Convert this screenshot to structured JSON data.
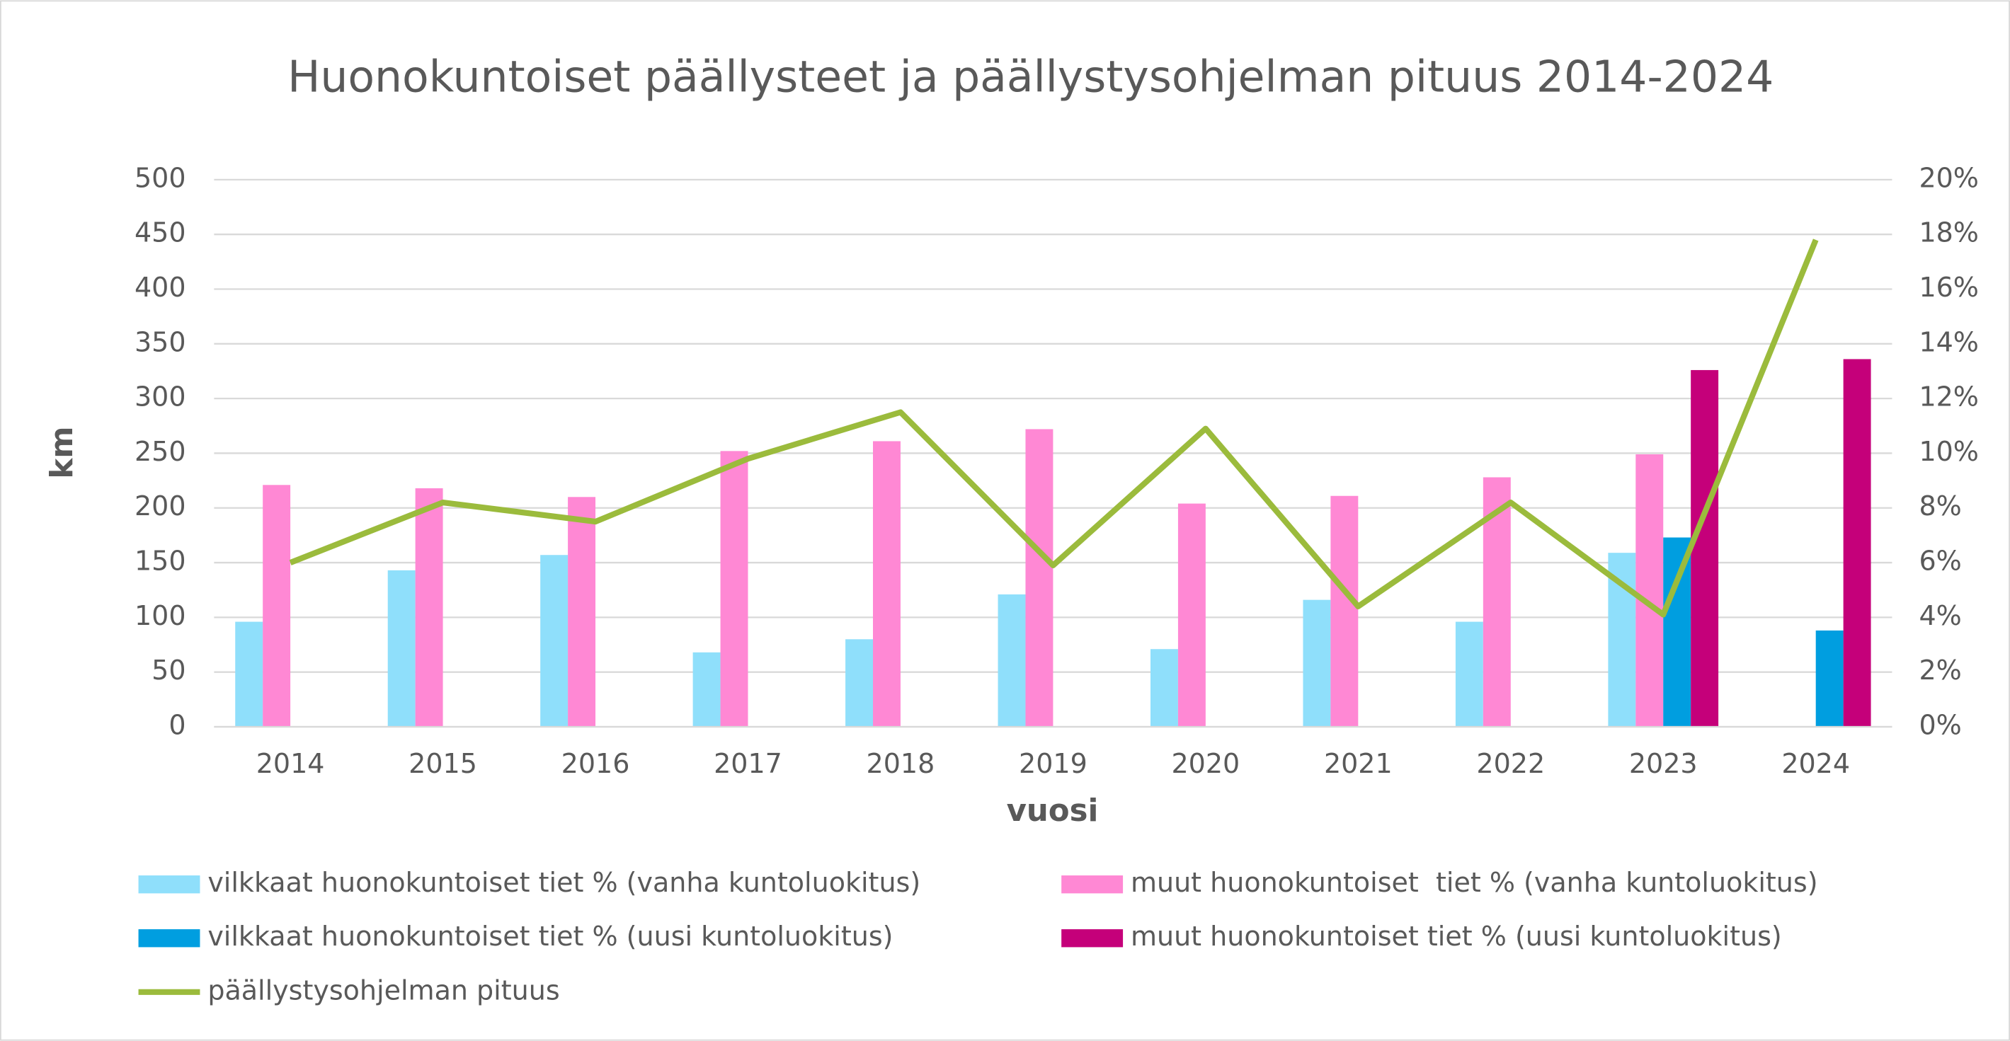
{
  "chart_data": {
    "type": "bar",
    "title": "Huonokuntoiset päällysteet ja päällystysohjelman pituus 2014-2024",
    "y_label": "km",
    "x_label": "vuosi",
    "categories": [
      "2014",
      "2015",
      "2016",
      "2017",
      "2018",
      "2019",
      "2020",
      "2021",
      "2022",
      "2023",
      "2024"
    ],
    "series": [
      {
        "name": "vilkkaat huonokuntoiset tiet % (vanha kuntoluokitus)",
        "color": "#8fdffb",
        "type": "bar",
        "values": [
          96,
          143,
          157,
          68,
          80,
          121,
          71,
          116,
          96,
          159,
          null
        ]
      },
      {
        "name": "muut huonokuntoiset  tiet % (vanha kuntoluokitus)",
        "color": "#ff88d4",
        "type": "bar",
        "values": [
          221,
          218,
          210,
          252,
          261,
          272,
          204,
          211,
          228,
          249,
          null
        ]
      },
      {
        "name": "vilkkaat huonokuntoiset tiet % (uusi kuntoluokitus)",
        "color": "#009ee0",
        "type": "bar",
        "values": [
          null,
          null,
          null,
          null,
          null,
          null,
          null,
          null,
          null,
          173,
          88
        ]
      },
      {
        "name": "muut huonokuntoiset tiet % (uusi kuntoluokitus)",
        "color": "#c5007a",
        "type": "bar",
        "values": [
          null,
          null,
          null,
          null,
          null,
          null,
          null,
          null,
          null,
          326,
          336
        ]
      },
      {
        "name": "päällystysohjelman pituus",
        "color": "#9bbb3c",
        "type": "line",
        "axis": "y2",
        "values": [
          6.0,
          8.2,
          7.5,
          9.8,
          11.5,
          5.9,
          10.9,
          4.4,
          8.2,
          4.1,
          17.8
        ]
      }
    ],
    "ylim": [
      0,
      500
    ],
    "yticks": [
      0,
      50,
      100,
      150,
      200,
      250,
      300,
      350,
      400,
      450,
      500
    ],
    "y2lim": [
      0,
      20
    ],
    "y2ticks": [
      {
        "value": 0,
        "label": "0%"
      },
      {
        "value": 2,
        "label": "2%"
      },
      {
        "value": 4,
        "label": "4%"
      },
      {
        "value": 6,
        "label": "6%"
      },
      {
        "value": 8,
        "label": "8%"
      },
      {
        "value": 10,
        "label": "10%"
      },
      {
        "value": 12,
        "label": "12%"
      },
      {
        "value": 14,
        "label": "14%"
      },
      {
        "value": 16,
        "label": "16%"
      },
      {
        "value": 18,
        "label": "18%"
      },
      {
        "value": 20,
        "label": "20%"
      }
    ],
    "grid": true
  }
}
